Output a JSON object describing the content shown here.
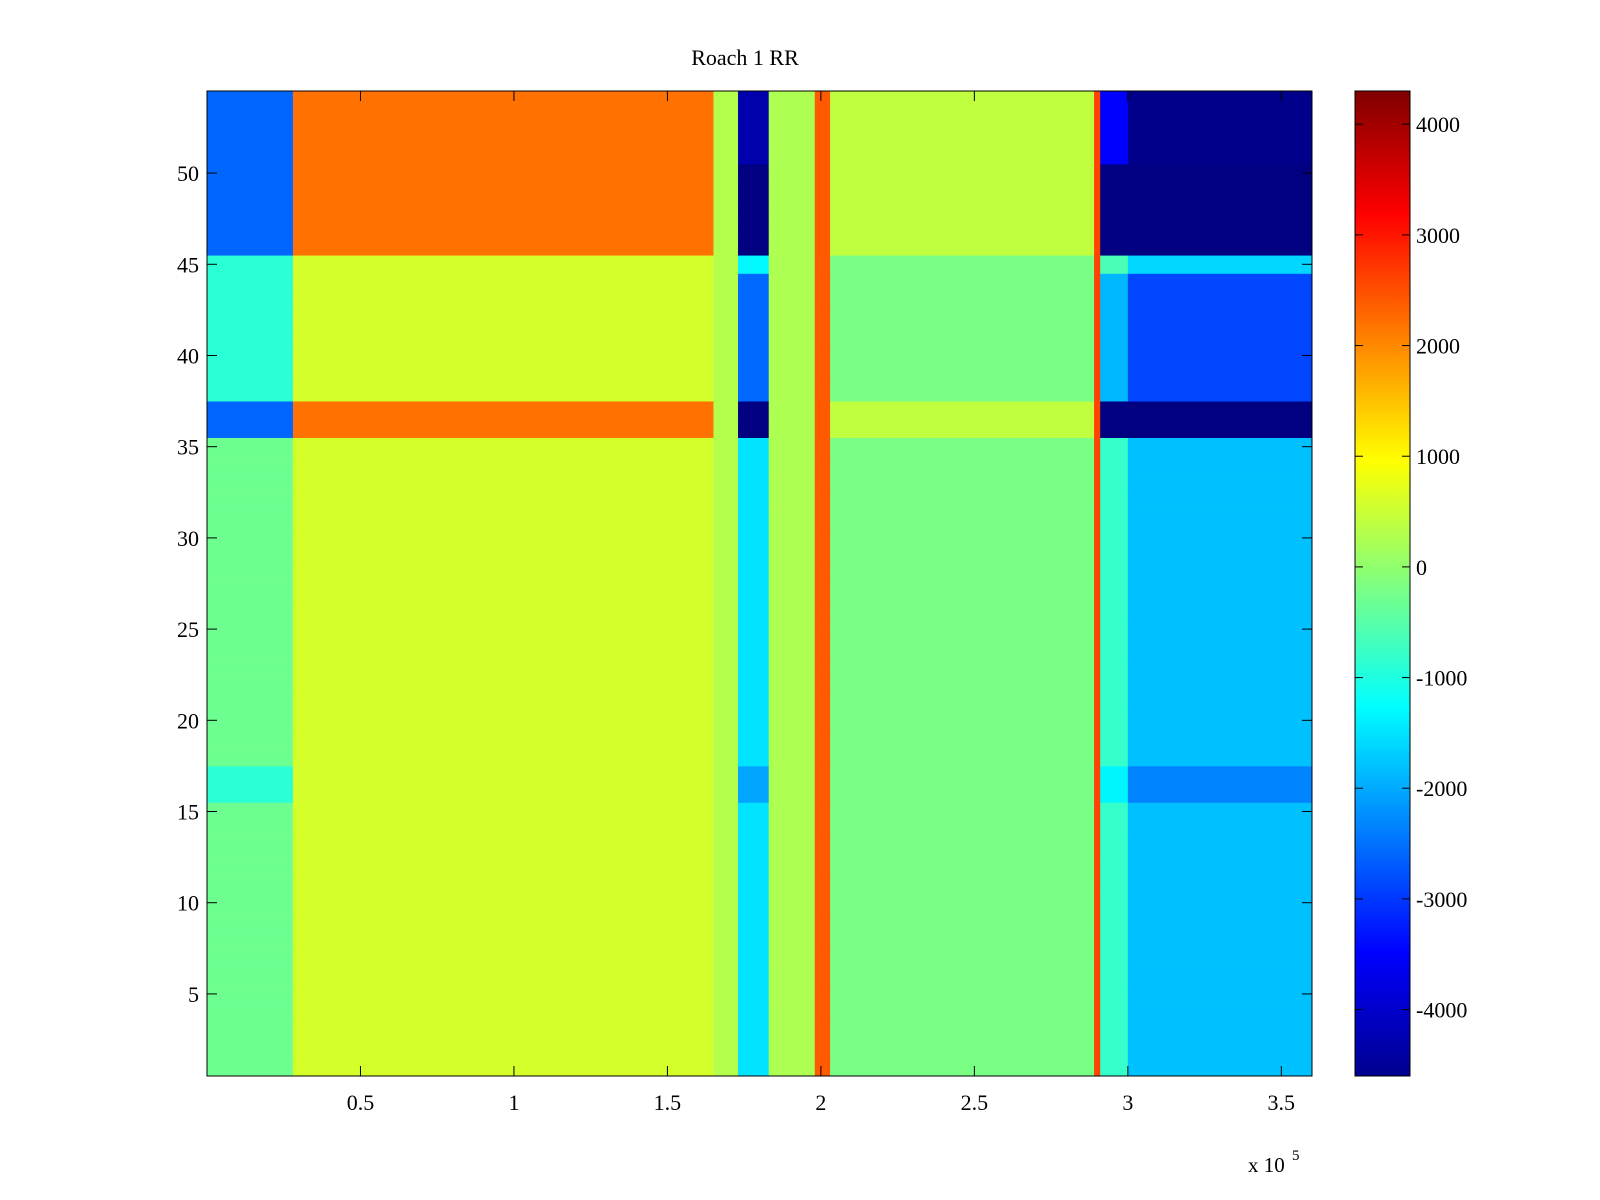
{
  "chart_data": {
    "type": "heatmap",
    "title": "Roach 1 RR",
    "xlabel": "",
    "ylabel": "",
    "x_multiplier_label": {
      "base": "x 10",
      "exponent": "5"
    },
    "xlim": [
      0,
      360000
    ],
    "ylim": [
      0.5,
      54.5
    ],
    "x_ticks": [
      {
        "value": 50000,
        "label": "0.5"
      },
      {
        "value": 100000,
        "label": "1"
      },
      {
        "value": 150000,
        "label": "1.5"
      },
      {
        "value": 200000,
        "label": "2"
      },
      {
        "value": 250000,
        "label": "2.5"
      },
      {
        "value": 300000,
        "label": "3"
      },
      {
        "value": 350000,
        "label": "3.5"
      }
    ],
    "y_ticks": [
      {
        "value": 5,
        "label": "5"
      },
      {
        "value": 10,
        "label": "10"
      },
      {
        "value": 15,
        "label": "15"
      },
      {
        "value": 20,
        "label": "20"
      },
      {
        "value": 25,
        "label": "25"
      },
      {
        "value": 30,
        "label": "30"
      },
      {
        "value": 35,
        "label": "35"
      },
      {
        "value": 40,
        "label": "40"
      },
      {
        "value": 45,
        "label": "45"
      },
      {
        "value": 50,
        "label": "50"
      }
    ],
    "colorbar": {
      "colormap": "jet",
      "clim": [
        -4600,
        4300
      ],
      "ticks": [
        {
          "value": 4000,
          "label": "4000"
        },
        {
          "value": 3000,
          "label": "3000"
        },
        {
          "value": 2000,
          "label": "2000"
        },
        {
          "value": 1000,
          "label": "1000"
        },
        {
          "value": 0,
          "label": "0"
        },
        {
          "value": -1000,
          "label": "-1000"
        },
        {
          "value": -2000,
          "label": "-2000"
        },
        {
          "value": -3000,
          "label": "-3000"
        },
        {
          "value": -4000,
          "label": "-4000"
        }
      ]
    },
    "rows": 54,
    "column_bands": [
      {
        "x": [
          0,
          28000
        ],
        "value": -300
      },
      {
        "x": [
          28000,
          165000
        ],
        "value": 600
      },
      {
        "x": [
          165000,
          173000
        ],
        "value": 300
      },
      {
        "x": [
          173000,
          183000
        ],
        "value": -1500
      },
      {
        "x": [
          183000,
          198000
        ],
        "value": 250
      },
      {
        "x": [
          198000,
          203000
        ],
        "value": 2400
      },
      {
        "x": [
          203000,
          289000
        ],
        "value": -200
      },
      {
        "x": [
          289000,
          291000
        ],
        "value": 2600
      },
      {
        "x": [
          291000,
          300000
        ],
        "value": -800
      },
      {
        "x": [
          300000,
          360000
        ],
        "value": -1800
      }
    ],
    "row_groups": [
      {
        "rows": [
          1,
          15
        ],
        "value": 0
      },
      {
        "rows": [
          16,
          17
        ],
        "value": -600
      },
      {
        "rows": [
          18,
          35
        ],
        "value": 0
      },
      {
        "rows": [
          36,
          37
        ],
        "value": -4400
      },
      {
        "rows": [
          38,
          44
        ],
        "value": -1200
      },
      {
        "rows": [
          45,
          45
        ],
        "value": 200
      },
      {
        "rows": [
          46,
          46
        ],
        "value": -4600
      },
      {
        "rows": [
          47,
          50
        ],
        "value": -4300
      },
      {
        "rows": [
          51,
          54
        ],
        "value": -3000
      }
    ]
  }
}
